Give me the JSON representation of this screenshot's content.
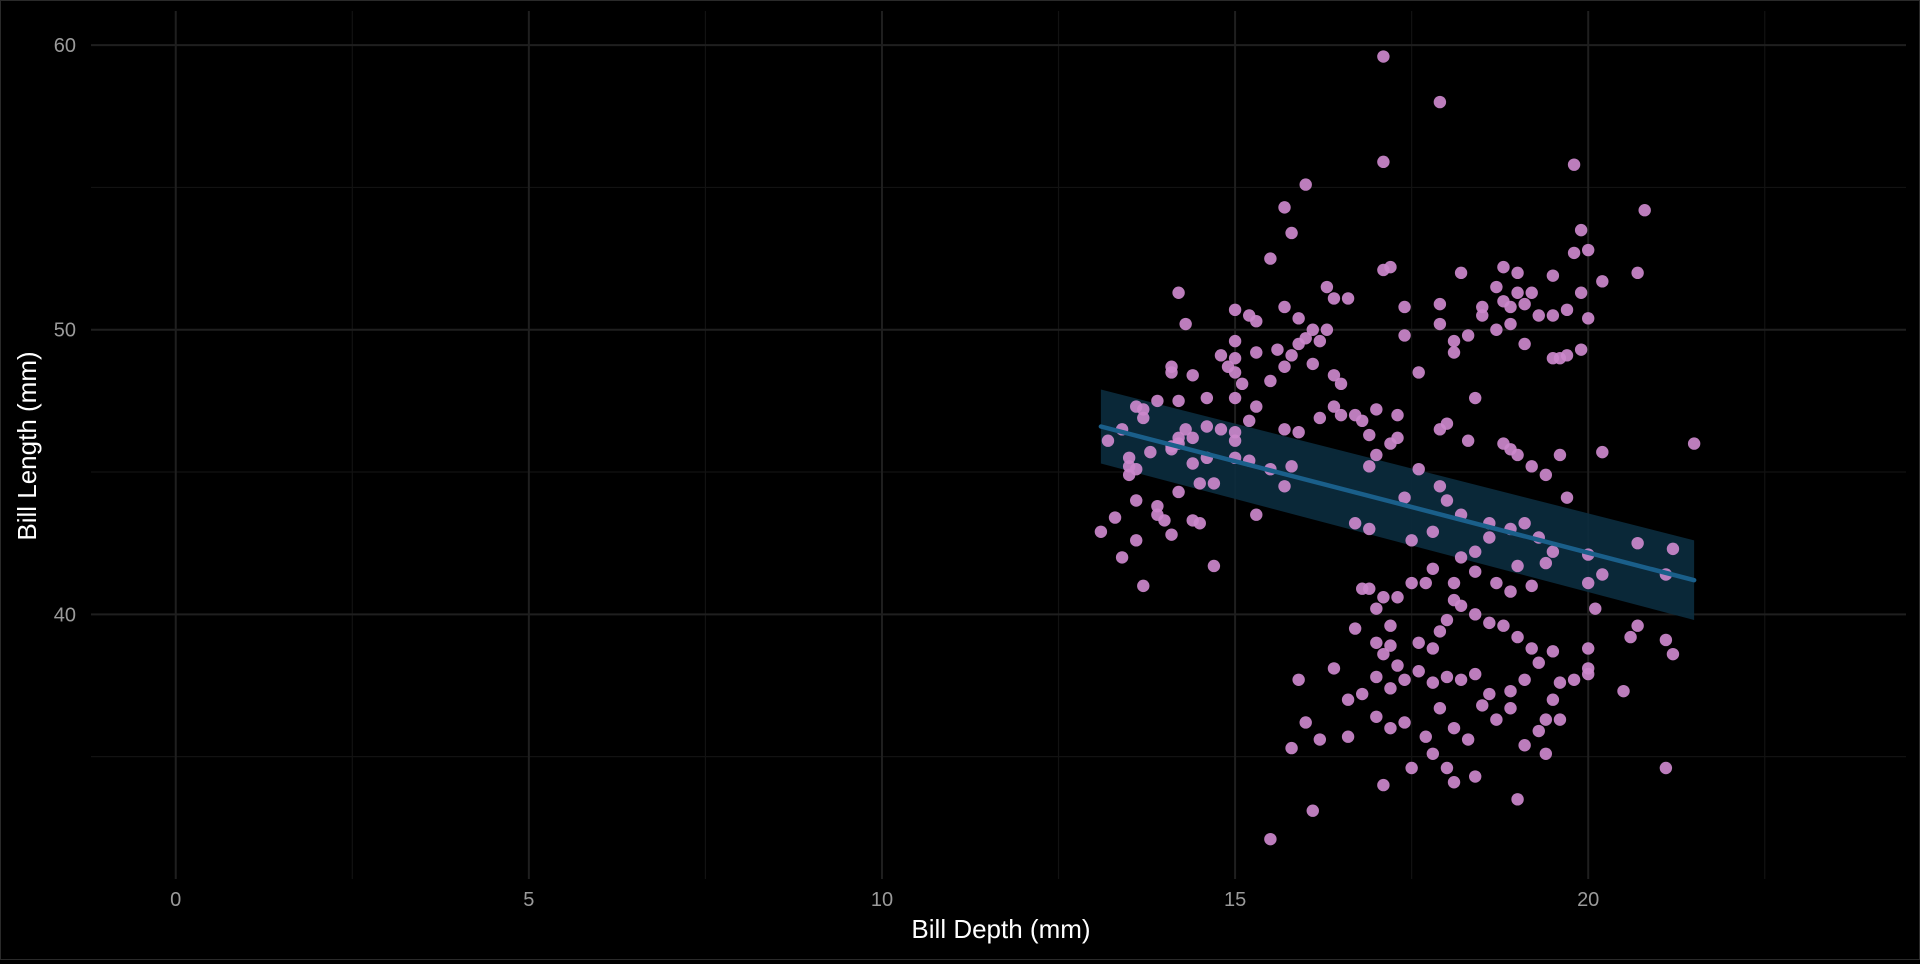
{
  "chart_data": {
    "type": "scatter",
    "title": "",
    "xlabel": "Bill Depth (mm)",
    "ylabel": "Bill Length (mm)",
    "xlim": [
      -1.2,
      24.5
    ],
    "ylim": [
      30.7,
      61.2
    ],
    "x_ticks": [
      0,
      5,
      10,
      15,
      20
    ],
    "y_ticks": [
      40,
      50,
      60
    ],
    "grid": true,
    "legend": "none",
    "colors": {
      "background": "#000000",
      "grid": "#1f1f1f",
      "point": "#cc88cc",
      "line": "#1a5f8a",
      "band": "#0b2c3e"
    },
    "regression": {
      "x": [
        13.1,
        21.5
      ],
      "y": [
        46.6,
        41.2
      ],
      "ci_lower": [
        45.3,
        39.8
      ],
      "ci_upper": [
        47.9,
        42.6
      ]
    },
    "points": [
      [
        17.1,
        59.6
      ],
      [
        17.9,
        58.0
      ],
      [
        19.8,
        55.8
      ],
      [
        17.1,
        55.9
      ],
      [
        20.8,
        54.2
      ],
      [
        16.0,
        55.1
      ],
      [
        15.7,
        54.3
      ],
      [
        15.8,
        53.4
      ],
      [
        19.9,
        53.5
      ],
      [
        15.5,
        52.5
      ],
      [
        17.1,
        52.1
      ],
      [
        17.2,
        52.2
      ],
      [
        18.2,
        52.0
      ],
      [
        18.8,
        52.2
      ],
      [
        19.0,
        52.0
      ],
      [
        19.8,
        52.7
      ],
      [
        20.0,
        52.8
      ],
      [
        20.7,
        52.0
      ],
      [
        19.5,
        51.9
      ],
      [
        18.7,
        51.5
      ],
      [
        19.0,
        51.3
      ],
      [
        20.2,
        51.7
      ],
      [
        16.3,
        51.5
      ],
      [
        16.6,
        51.1
      ],
      [
        16.4,
        51.1
      ],
      [
        14.2,
        51.3
      ],
      [
        19.2,
        51.3
      ],
      [
        18.5,
        50.8
      ],
      [
        18.8,
        51.0
      ],
      [
        18.9,
        50.8
      ],
      [
        17.4,
        50.8
      ],
      [
        19.1,
        50.9
      ],
      [
        19.3,
        50.5
      ],
      [
        19.5,
        50.5
      ],
      [
        19.7,
        50.7
      ],
      [
        19.9,
        51.3
      ],
      [
        17.9,
        50.9
      ],
      [
        15.0,
        50.7
      ],
      [
        15.2,
        50.5
      ],
      [
        15.3,
        50.3
      ],
      [
        15.7,
        50.8
      ],
      [
        15.9,
        50.4
      ],
      [
        16.1,
        50.0
      ],
      [
        16.3,
        50.0
      ],
      [
        16.0,
        49.7
      ],
      [
        15.9,
        49.5
      ],
      [
        16.2,
        49.6
      ],
      [
        15.6,
        49.3
      ],
      [
        15.8,
        49.1
      ],
      [
        16.1,
        48.8
      ],
      [
        16.4,
        48.4
      ],
      [
        16.5,
        48.1
      ],
      [
        15.5,
        48.2
      ],
      [
        15.7,
        48.7
      ],
      [
        15.0,
        49.6
      ],
      [
        15.0,
        49.0
      ],
      [
        15.3,
        49.2
      ],
      [
        14.8,
        49.1
      ],
      [
        14.9,
        48.7
      ],
      [
        14.3,
        50.2
      ],
      [
        15.0,
        48.5
      ],
      [
        15.1,
        48.1
      ],
      [
        15.0,
        47.6
      ],
      [
        14.6,
        47.6
      ],
      [
        14.4,
        48.4
      ],
      [
        14.1,
        48.7
      ],
      [
        14.1,
        48.5
      ],
      [
        14.2,
        47.5
      ],
      [
        13.9,
        47.5
      ],
      [
        13.7,
        47.2
      ],
      [
        13.6,
        47.3
      ],
      [
        13.7,
        46.9
      ],
      [
        14.3,
        46.5
      ],
      [
        14.4,
        46.2
      ],
      [
        14.6,
        46.6
      ],
      [
        14.8,
        46.5
      ],
      [
        15.0,
        46.4
      ],
      [
        15.3,
        47.3
      ],
      [
        15.2,
        46.8
      ],
      [
        15.7,
        46.5
      ],
      [
        15.9,
        46.4
      ],
      [
        15.0,
        46.1
      ],
      [
        14.2,
        46.0
      ],
      [
        14.1,
        45.9
      ],
      [
        13.8,
        45.7
      ],
      [
        13.5,
        45.5
      ],
      [
        13.5,
        45.2
      ],
      [
        13.6,
        45.1
      ],
      [
        13.2,
        46.1
      ],
      [
        13.4,
        46.5
      ],
      [
        13.5,
        44.9
      ],
      [
        13.1,
        42.9
      ],
      [
        13.3,
        43.4
      ],
      [
        13.4,
        42.0
      ],
      [
        13.6,
        42.6
      ],
      [
        13.9,
        43.5
      ],
      [
        14.0,
        43.3
      ],
      [
        14.1,
        42.8
      ],
      [
        14.4,
        43.3
      ],
      [
        14.5,
        43.2
      ],
      [
        14.7,
        41.7
      ],
      [
        13.6,
        44.0
      ],
      [
        13.9,
        43.8
      ],
      [
        14.2,
        44.3
      ],
      [
        14.5,
        44.6
      ],
      [
        14.7,
        44.6
      ],
      [
        15.0,
        45.5
      ],
      [
        15.2,
        45.4
      ],
      [
        15.5,
        45.1
      ],
      [
        15.8,
        45.2
      ],
      [
        15.7,
        44.5
      ],
      [
        13.7,
        41.0
      ],
      [
        15.3,
        43.5
      ],
      [
        16.2,
        46.9
      ],
      [
        16.4,
        47.3
      ],
      [
        16.5,
        47.0
      ],
      [
        16.7,
        47.0
      ],
      [
        16.8,
        46.8
      ],
      [
        16.9,
        46.3
      ],
      [
        17.0,
        47.2
      ],
      [
        17.3,
        47.0
      ],
      [
        17.6,
        48.5
      ],
      [
        17.4,
        49.8
      ],
      [
        17.3,
        46.2
      ],
      [
        17.0,
        45.6
      ],
      [
        17.2,
        46.0
      ],
      [
        17.6,
        45.1
      ],
      [
        17.9,
        46.5
      ],
      [
        18.0,
        46.7
      ],
      [
        17.9,
        44.5
      ],
      [
        18.3,
        46.1
      ],
      [
        18.4,
        47.6
      ],
      [
        18.8,
        46.0
      ],
      [
        18.9,
        45.8
      ],
      [
        19.0,
        45.6
      ],
      [
        19.2,
        45.2
      ],
      [
        19.4,
        44.9
      ],
      [
        19.6,
        45.6
      ],
      [
        19.7,
        44.1
      ],
      [
        18.1,
        49.6
      ],
      [
        18.1,
        49.2
      ],
      [
        18.5,
        50.5
      ],
      [
        16.9,
        45.2
      ],
      [
        17.4,
        44.1
      ],
      [
        18.2,
        43.5
      ],
      [
        18.0,
        44.0
      ],
      [
        18.6,
        43.2
      ],
      [
        18.9,
        43.0
      ],
      [
        19.1,
        43.2
      ],
      [
        19.3,
        42.7
      ],
      [
        19.5,
        42.2
      ],
      [
        19.4,
        41.8
      ],
      [
        19.2,
        41.0
      ],
      [
        18.9,
        40.8
      ],
      [
        18.7,
        41.1
      ],
      [
        18.4,
        41.5
      ],
      [
        18.1,
        41.1
      ],
      [
        17.8,
        41.6
      ],
      [
        17.5,
        41.1
      ],
      [
        17.7,
        41.1
      ],
      [
        17.1,
        40.6
      ],
      [
        16.9,
        40.9
      ],
      [
        16.8,
        40.9
      ],
      [
        17.0,
        40.2
      ],
      [
        17.3,
        40.6
      ],
      [
        17.2,
        39.6
      ],
      [
        17.0,
        39.0
      ],
      [
        16.7,
        39.5
      ],
      [
        17.1,
        38.6
      ],
      [
        17.2,
        38.9
      ],
      [
        17.3,
        38.2
      ],
      [
        17.6,
        39.0
      ],
      [
        17.8,
        38.8
      ],
      [
        17.9,
        39.4
      ],
      [
        18.0,
        39.8
      ],
      [
        18.1,
        40.5
      ],
      [
        18.2,
        40.3
      ],
      [
        18.4,
        40.0
      ],
      [
        18.6,
        39.7
      ],
      [
        18.8,
        39.6
      ],
      [
        19.0,
        39.2
      ],
      [
        19.2,
        38.8
      ],
      [
        19.3,
        38.3
      ],
      [
        19.5,
        38.7
      ],
      [
        19.1,
        37.7
      ],
      [
        18.9,
        37.3
      ],
      [
        18.6,
        37.2
      ],
      [
        18.4,
        37.9
      ],
      [
        18.2,
        37.7
      ],
      [
        18.0,
        37.8
      ],
      [
        17.8,
        37.6
      ],
      [
        17.6,
        38.0
      ],
      [
        17.4,
        37.7
      ],
      [
        17.2,
        37.4
      ],
      [
        17.0,
        37.8
      ],
      [
        16.8,
        37.2
      ],
      [
        16.6,
        37.0
      ],
      [
        16.4,
        38.1
      ],
      [
        17.0,
        36.4
      ],
      [
        17.2,
        36.0
      ],
      [
        17.4,
        36.2
      ],
      [
        17.7,
        35.7
      ],
      [
        17.9,
        36.7
      ],
      [
        18.1,
        36.0
      ],
      [
        18.3,
        35.6
      ],
      [
        18.5,
        36.8
      ],
      [
        18.7,
        36.3
      ],
      [
        18.9,
        36.7
      ],
      [
        19.1,
        35.4
      ],
      [
        19.3,
        35.9
      ],
      [
        19.4,
        36.3
      ],
      [
        19.6,
        36.3
      ],
      [
        17.8,
        35.1
      ],
      [
        18.0,
        34.6
      ],
      [
        18.1,
        34.1
      ],
      [
        18.4,
        34.3
      ],
      [
        17.5,
        34.6
      ],
      [
        17.1,
        34.0
      ],
      [
        16.6,
        35.7
      ],
      [
        16.2,
        35.6
      ],
      [
        16.0,
        36.2
      ],
      [
        15.8,
        35.3
      ],
      [
        15.9,
        37.7
      ],
      [
        16.1,
        33.1
      ],
      [
        15.5,
        32.1
      ],
      [
        19.0,
        33.5
      ],
      [
        19.4,
        35.1
      ],
      [
        19.5,
        37.0
      ],
      [
        19.6,
        37.6
      ],
      [
        19.8,
        37.7
      ],
      [
        20.0,
        37.9
      ],
      [
        20.0,
        38.8
      ],
      [
        20.0,
        38.1
      ],
      [
        20.5,
        37.3
      ],
      [
        20.6,
        39.2
      ],
      [
        20.7,
        39.6
      ],
      [
        20.1,
        40.2
      ],
      [
        20.0,
        41.1
      ],
      [
        20.2,
        41.4
      ],
      [
        20.0,
        42.1
      ],
      [
        20.7,
        42.5
      ],
      [
        21.2,
        42.3
      ],
      [
        21.1,
        41.4
      ],
      [
        21.2,
        38.6
      ],
      [
        21.1,
        39.1
      ],
      [
        21.1,
        34.6
      ],
      [
        21.5,
        46.0
      ],
      [
        20.2,
        45.7
      ],
      [
        19.7,
        49.1
      ],
      [
        19.5,
        49.0
      ],
      [
        19.6,
        49.0
      ],
      [
        19.9,
        49.3
      ],
      [
        20.0,
        50.4
      ],
      [
        19.1,
        49.5
      ],
      [
        18.9,
        50.2
      ],
      [
        18.7,
        50.0
      ],
      [
        18.3,
        49.8
      ],
      [
        17.9,
        50.2
      ],
      [
        14.4,
        45.3
      ],
      [
        14.6,
        45.5
      ],
      [
        14.2,
        46.2
      ],
      [
        14.1,
        45.8
      ],
      [
        18.6,
        42.7
      ],
      [
        18.4,
        42.2
      ],
      [
        18.2,
        42.0
      ],
      [
        16.7,
        43.2
      ],
      [
        16.9,
        43.0
      ],
      [
        17.5,
        42.6
      ],
      [
        17.8,
        42.9
      ],
      [
        19.0,
        41.7
      ]
    ]
  }
}
